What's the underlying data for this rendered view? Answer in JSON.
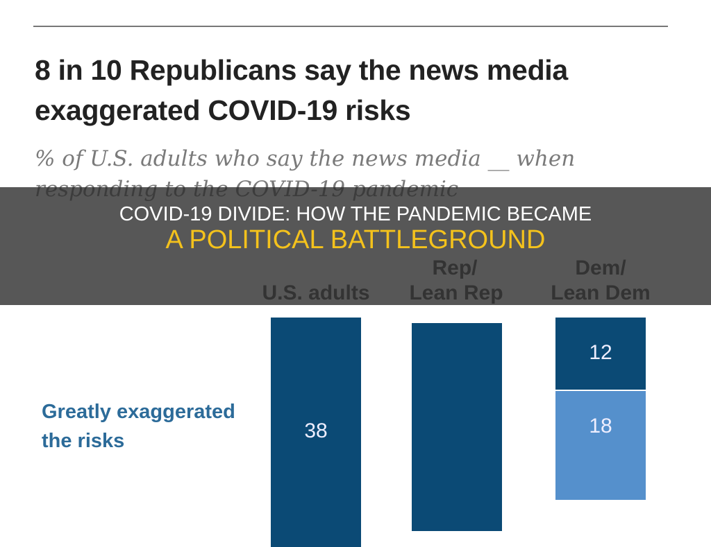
{
  "overlay": {
    "line1": "COVID-19 DIVIDE: HOW THE PANDEMIC BECAME",
    "line2": "A POLITICAL BATTLEGROUND"
  },
  "chart_data": {
    "type": "bar",
    "title": [
      "8 in 10 Republicans say the news media",
      "exaggerated COVID-19 risks"
    ],
    "subtitle": [
      "% of U.S. adults who say the news media __ when",
      "responding to the COVID-19 pandemic"
    ],
    "categories": [
      {
        "line1": "",
        "line2": "U.S. adults"
      },
      {
        "line1": "Rep/",
        "line2": "Lean Rep"
      },
      {
        "line1": "Dem/",
        "line2": "Lean Dem"
      }
    ],
    "row_label": [
      "Greatly exaggerated",
      "the risks"
    ],
    "segments": [
      {
        "category": "U.S. adults",
        "value": 38,
        "label": "38",
        "color": "#0b4a75"
      },
      {
        "category": "Lean Rep",
        "value": null,
        "label": "",
        "color": "#0b4a75"
      },
      {
        "category": "Lean Dem",
        "value": 12,
        "label": "12",
        "color": "#0b4a75"
      },
      {
        "category": "Lean Dem",
        "value": 18,
        "label": "18",
        "color": "#5590cc"
      }
    ]
  }
}
